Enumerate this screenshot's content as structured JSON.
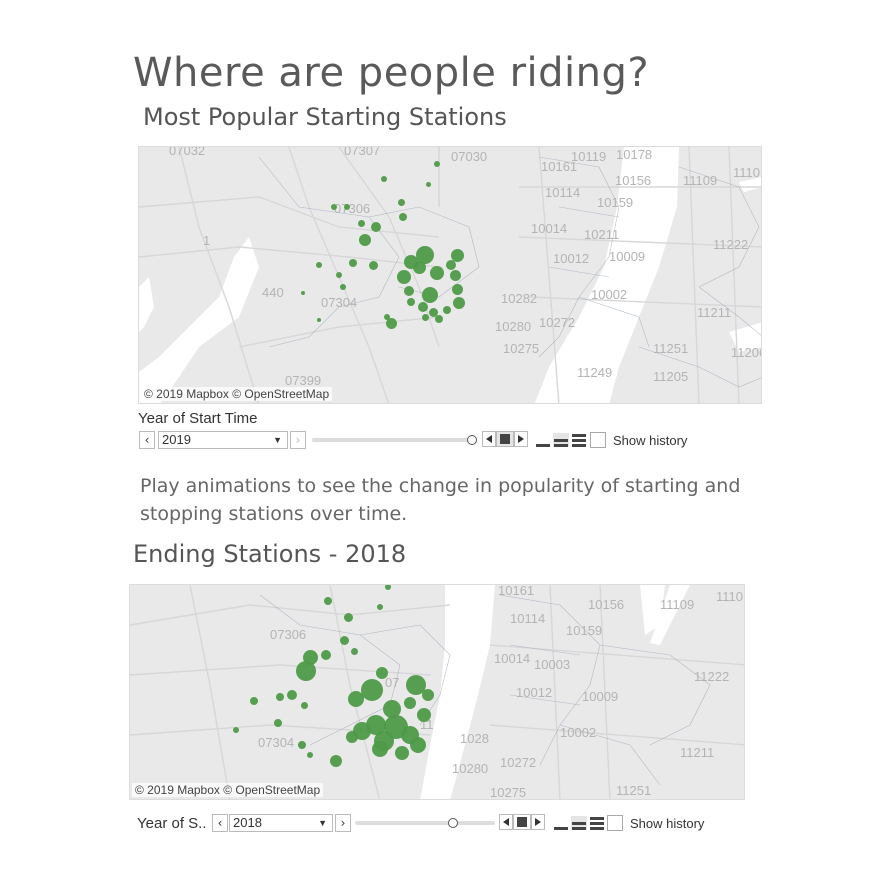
{
  "page": {
    "title": "Where are people riding?",
    "subtitle": "Most Popular Starting Stations",
    "description": "Play animations to see the change in popularity of starting and stopping stations over time.",
    "ending_title": "Ending Stations - 2018"
  },
  "colors": {
    "dot": "#4e9a48",
    "land": "#e9e9e9",
    "water": "#ffffff",
    "zip_text": "#b4b4b4"
  },
  "map1": {
    "credit": "© 2019 Mapbox © OpenStreetMap",
    "zip_labels": [
      "07032",
      "07307",
      "07030",
      "10119",
      "10178",
      "10161",
      "10156",
      "11109",
      "11101",
      "10114",
      "10159",
      "07306",
      "10014",
      "10211",
      "11222",
      "10012",
      "10009",
      "07304",
      "10282",
      "10002",
      "10280",
      "10272",
      "11211",
      "10275",
      "11251",
      "11206",
      "11249",
      "11205",
      "07399",
      "440",
      "1"
    ],
    "filter": {
      "label": "Year of Start Time",
      "value": "2019",
      "prev_icon": "chevron-left-icon",
      "next_icon": "chevron-right-icon",
      "slider_fraction": 1.0,
      "show_history_label": "Show history",
      "show_history_checked": false
    }
  },
  "map2": {
    "credit": "© 2019 Mapbox © OpenStreetMap",
    "zip_labels": [
      "10161",
      "10156",
      "11109",
      "1110",
      "07306",
      "10114",
      "10159",
      "10014",
      "10003",
      "11222",
      "07",
      "11",
      "10012",
      "10009",
      "10002",
      "07304",
      "1028",
      "10272",
      "11211",
      "10280",
      "10275",
      "11251"
    ],
    "filter": {
      "label": "Year of S..",
      "value": "2018",
      "slider_fraction": 0.7,
      "show_history_label": "Show history",
      "show_history_checked": false
    }
  }
}
